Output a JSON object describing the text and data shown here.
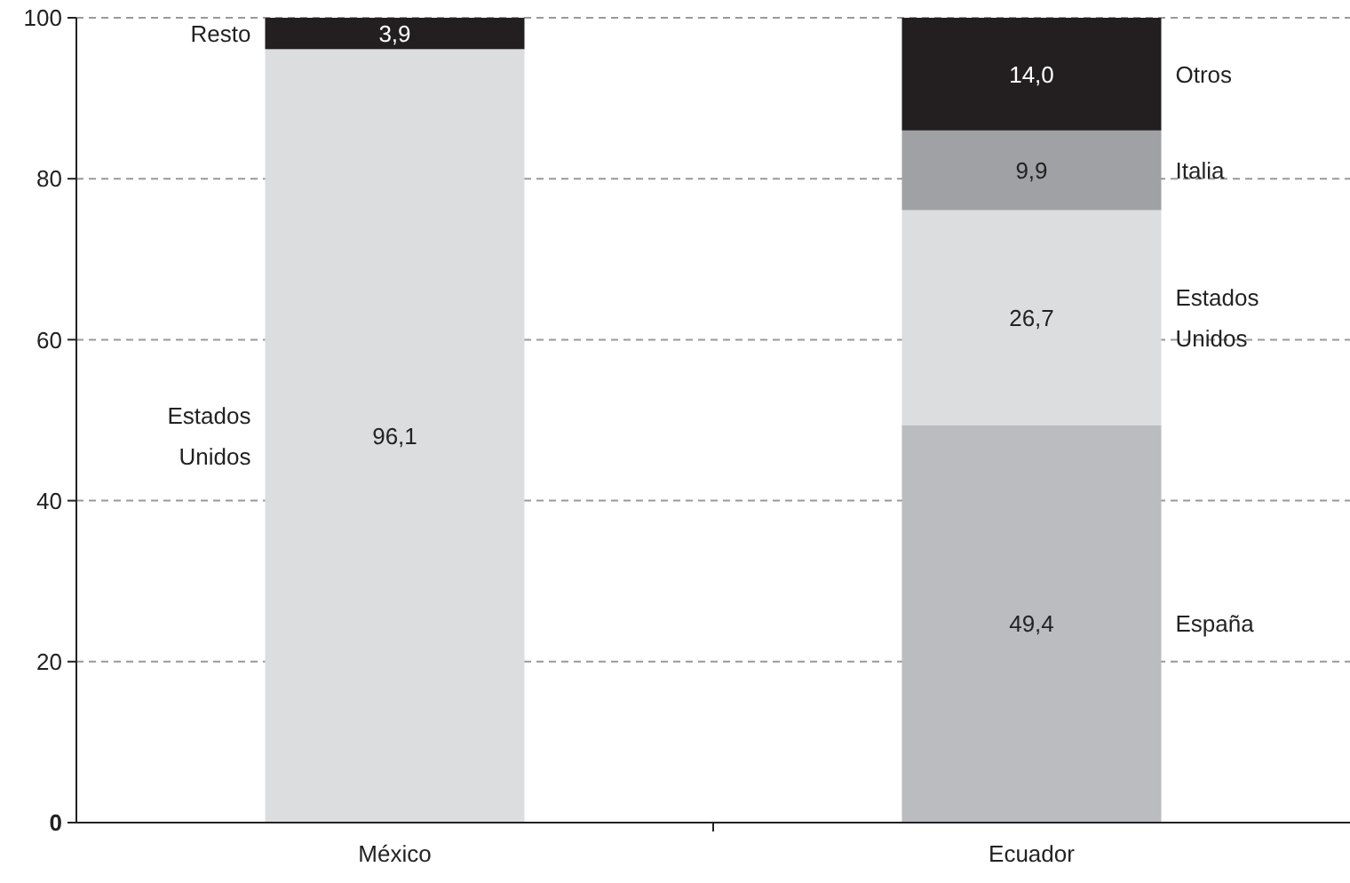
{
  "chart_data": {
    "type": "bar",
    "stacked": true,
    "categories": [
      "México",
      "Ecuador"
    ],
    "ylim": [
      0,
      100
    ],
    "yticks": [
      0,
      20,
      40,
      60,
      80,
      100
    ],
    "grid": "y",
    "series": [
      {
        "name": "España",
        "color": "#bbbcc0",
        "values": [
          null,
          49.4
        ],
        "value_labels": [
          null,
          "49,4"
        ]
      },
      {
        "name": "Estados Unidos",
        "color": "#dcdddf",
        "values": [
          96.1,
          26.7
        ],
        "value_labels": [
          "96,1",
          "26,7"
        ]
      },
      {
        "name": "Italia",
        "color": "#a0a1a4",
        "values": [
          null,
          9.9
        ],
        "value_labels": [
          null,
          "9,9"
        ]
      },
      {
        "name": "Resto",
        "color": "#231f20",
        "values": [
          3.9,
          null
        ],
        "value_labels": [
          "3,9",
          null
        ]
      },
      {
        "name": "Otros",
        "color": "#231f20",
        "values": [
          null,
          14.0
        ],
        "value_labels": [
          null,
          "14,0"
        ]
      }
    ]
  }
}
